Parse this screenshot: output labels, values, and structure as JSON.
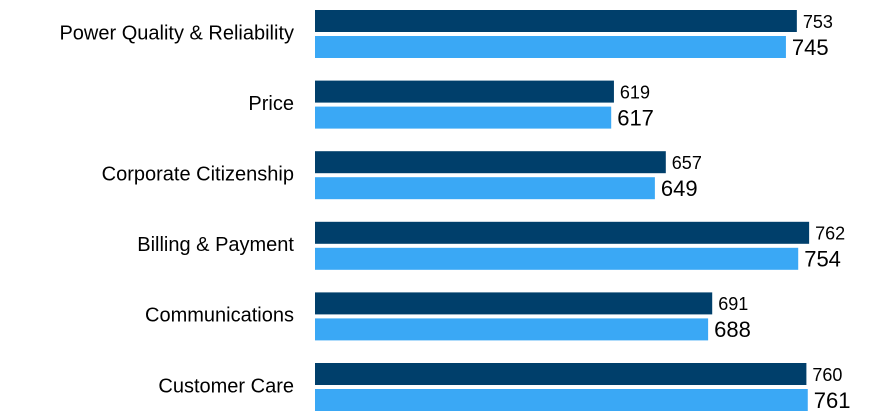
{
  "chart_data": {
    "type": "hbar",
    "categories": [
      "Power Quality & Reliability",
      "Price",
      "Corporate Citizenship",
      "Billing & Payment",
      "Communications",
      "Customer Care"
    ],
    "series": [
      {
        "color": "#003f6b",
        "values": [
          753,
          619,
          657,
          762,
          691,
          760
        ]
      },
      {
        "color": "#3aa8f5",
        "values": [
          745,
          617,
          649,
          754,
          688,
          761
        ]
      }
    ],
    "xlim": [
      400,
      800
    ]
  }
}
